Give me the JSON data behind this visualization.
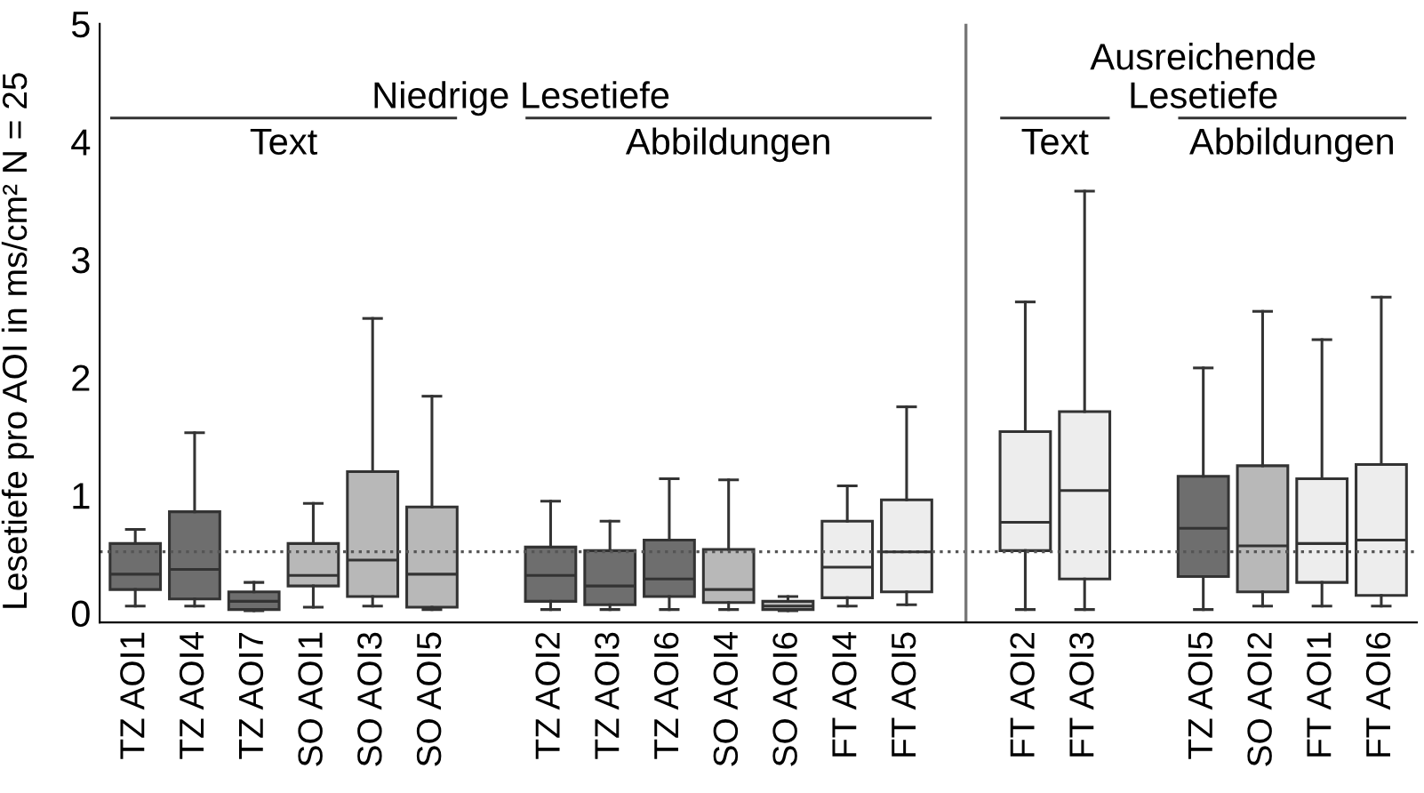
{
  "chart_data": {
    "type": "box",
    "ylabel": "Lesetiefe pro AOI in ms/cm² N = 25",
    "categories": [
      "TZ AOI1",
      "TZ AOI4",
      "TZ AOI7",
      "SO AOI1",
      "SO AOI3",
      "SO AOI5",
      null,
      "TZ AOI2",
      "TZ AOI3",
      "TZ AOI6",
      "SO AOI4",
      "SO AOI6",
      "FT AOI4",
      "FT AOI5",
      null,
      "FT AOI2",
      "FT AOI3",
      null,
      "TZ AOI5",
      "SO AOI2",
      "FT AOI1",
      "FT AOI6"
    ],
    "boxes": [
      {
        "low": 0.06,
        "q1": 0.2,
        "median": 0.33,
        "q3": 0.59,
        "high": 0.71
      },
      {
        "low": 0.06,
        "q1": 0.12,
        "median": 0.37,
        "q3": 0.86,
        "high": 1.53
      },
      {
        "low": 0.02,
        "q1": 0.03,
        "median": 0.1,
        "q3": 0.18,
        "high": 0.26
      },
      {
        "low": 0.05,
        "q1": 0.23,
        "median": 0.32,
        "q3": 0.59,
        "high": 0.93
      },
      {
        "low": 0.06,
        "q1": 0.14,
        "median": 0.45,
        "q3": 1.2,
        "high": 2.5
      },
      {
        "low": 0.03,
        "q1": 0.05,
        "median": 0.33,
        "q3": 0.9,
        "high": 1.84
      },
      null,
      {
        "low": 0.03,
        "q1": 0.1,
        "median": 0.32,
        "q3": 0.56,
        "high": 0.95
      },
      {
        "low": 0.03,
        "q1": 0.07,
        "median": 0.23,
        "q3": 0.53,
        "high": 0.78
      },
      {
        "low": 0.03,
        "q1": 0.14,
        "median": 0.29,
        "q3": 0.62,
        "high": 1.14
      },
      {
        "low": 0.03,
        "q1": 0.09,
        "median": 0.2,
        "q3": 0.54,
        "high": 1.13
      },
      {
        "low": 0.02,
        "q1": 0.03,
        "median": 0.06,
        "q3": 0.1,
        "high": 0.14
      },
      {
        "low": 0.06,
        "q1": 0.13,
        "median": 0.39,
        "q3": 0.78,
        "high": 1.08
      },
      {
        "low": 0.07,
        "q1": 0.18,
        "median": 0.52,
        "q3": 0.96,
        "high": 1.75
      },
      null,
      {
        "low": 0.03,
        "q1": 0.53,
        "median": 0.77,
        "q3": 1.54,
        "high": 2.64
      },
      {
        "low": 0.03,
        "q1": 0.29,
        "median": 1.04,
        "q3": 1.71,
        "high": 3.58
      },
      null,
      {
        "low": 0.03,
        "q1": 0.31,
        "median": 0.72,
        "q3": 1.16,
        "high": 2.08
      },
      {
        "low": 0.06,
        "q1": 0.18,
        "median": 0.57,
        "q3": 1.25,
        "high": 2.56
      },
      {
        "low": 0.06,
        "q1": 0.26,
        "median": 0.59,
        "q3": 1.14,
        "high": 2.32
      },
      {
        "low": 0.06,
        "q1": 0.15,
        "median": 0.62,
        "q3": 1.26,
        "high": 2.68
      }
    ],
    "colors": [
      "#6e6e6e",
      "#6e6e6e",
      "#6e6e6e",
      "#b8b8b8",
      "#b8b8b8",
      "#b8b8b8",
      null,
      "#6e6e6e",
      "#6e6e6e",
      "#6e6e6e",
      "#b8b8b8",
      "#b8b8b8",
      "#ededed",
      "#ededed",
      null,
      "#ededed",
      "#ededed",
      null,
      "#6e6e6e",
      "#b8b8b8",
      "#ededed",
      "#ededed"
    ],
    "ylim": [
      -0.08,
      5
    ],
    "yticks": [
      0,
      1,
      2,
      3,
      4,
      5
    ],
    "legend": false,
    "ref_lines": [
      {
        "axis": "y",
        "value": 0.52,
        "line_style": "dotted",
        "color": "#555555"
      }
    ],
    "annotations": [
      "Niedrige Lesetiefe",
      "Text",
      "Abbildungen",
      "Ausreichende\nLesetiefe",
      "Text",
      "Abbildungen"
    ]
  }
}
